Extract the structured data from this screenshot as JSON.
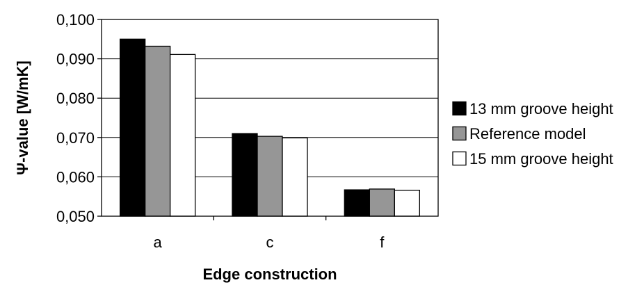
{
  "chart_data": {
    "type": "bar",
    "categories": [
      "a",
      "c",
      "f"
    ],
    "series": [
      {
        "name": "13 mm groove height",
        "values": [
          0.095,
          0.071,
          0.0567
        ],
        "color": "#000000"
      },
      {
        "name": "Reference model",
        "values": [
          0.0932,
          0.0703,
          0.0569
        ],
        "color": "#969696"
      },
      {
        "name": "15 mm groove height",
        "values": [
          0.0911,
          0.0699,
          0.0566
        ],
        "color": "#ffffff"
      }
    ],
    "yticks": [
      "0,050",
      "0,060",
      "0,070",
      "0,080",
      "0,090",
      "0,100"
    ],
    "ylim": [
      0.05,
      0.1
    ],
    "ylabel": "Ψ-value [W/mK]",
    "xlabel": "Edge construction",
    "grid": true,
    "legend_position": "right"
  }
}
